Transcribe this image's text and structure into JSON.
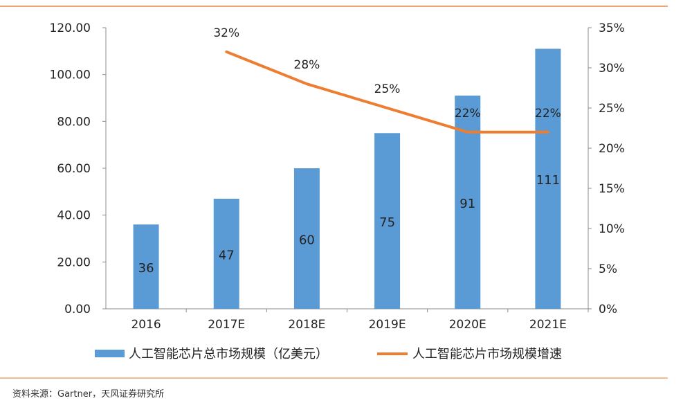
{
  "colors": {
    "bar": "#5B9BD5",
    "line": "#ED7D31",
    "rule": "#F0A66E",
    "axis": "#8C8C8C"
  },
  "chart_data": {
    "type": "bar",
    "categories": [
      "2016",
      "2017E",
      "2018E",
      "2019E",
      "2020E",
      "2021E"
    ],
    "series": [
      {
        "name": "人工智能芯片总市场规模（亿美元）",
        "type": "bar",
        "axis": "left",
        "values": [
          36,
          47,
          60,
          75,
          91,
          111
        ],
        "labels": [
          "36",
          "47",
          "60",
          "75",
          "91",
          "111"
        ]
      },
      {
        "name": "人工智能芯片市场规模增速",
        "type": "line",
        "axis": "right",
        "values": [
          null,
          32,
          28,
          25,
          22,
          22
        ],
        "labels": [
          "",
          "32%",
          "28%",
          "25%",
          "22%",
          "22%"
        ]
      }
    ],
    "left_axis": {
      "min": 0,
      "max": 120,
      "step": 20,
      "ticks": [
        "0.00",
        "20.00",
        "40.00",
        "60.00",
        "80.00",
        "100.00",
        "120.00"
      ]
    },
    "right_axis": {
      "min": 0,
      "max": 35,
      "step": 5,
      "ticks": [
        "0%",
        "5%",
        "10%",
        "15%",
        "20%",
        "25%",
        "30%",
        "35%"
      ]
    },
    "grid": false,
    "legend_position": "bottom"
  },
  "source": "资料来源：Gartner，天风证券研究所"
}
